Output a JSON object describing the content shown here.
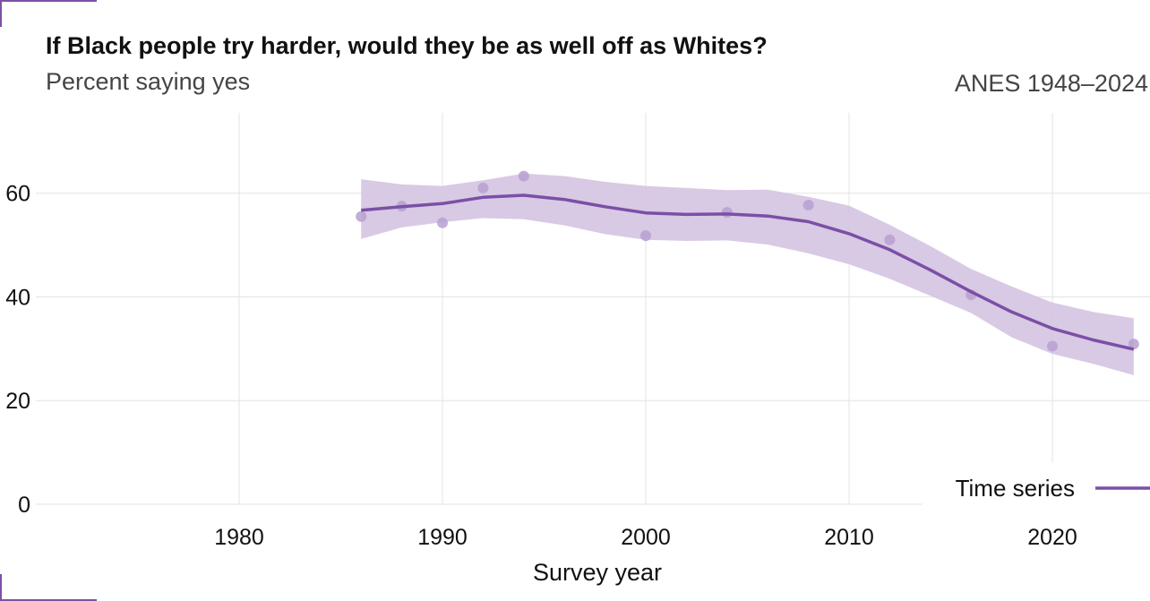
{
  "header": {
    "title": "If Black people try harder, would they be as well off as Whites?",
    "subtitle": "Percent saying yes",
    "source": "ANES 1948–2024"
  },
  "colors": {
    "line": "#7b4fa6",
    "band": "#d6c6e3",
    "points": "#b9a0d1",
    "grid": "#e3e3e3",
    "corner": "#7b52a6"
  },
  "chart_data": {
    "type": "line",
    "title": "If Black people try harder, would they be as well off as Whites?",
    "subtitle": "Percent saying yes",
    "xlabel": "Survey year",
    "ylabel": "",
    "xlim": [
      1971,
      2025
    ],
    "ylim": [
      0,
      72
    ],
    "xticks": [
      1980,
      1990,
      2000,
      2010,
      2020
    ],
    "yticks": [
      0,
      20,
      40,
      60
    ],
    "grid": true,
    "legend": {
      "placement": "bottom-right",
      "entries": [
        "Time series"
      ]
    },
    "points": {
      "x": [
        1986,
        1988,
        1990,
        1992,
        1994,
        2000,
        2004,
        2008,
        2012,
        2016,
        2020,
        2024
      ],
      "y": [
        55.5,
        57.5,
        54.3,
        61.0,
        63.3,
        51.8,
        56.3,
        57.7,
        51.0,
        40.4,
        30.5,
        30.9
      ]
    },
    "series": [
      {
        "name": "Time series",
        "x": [
          1986,
          1988,
          1990,
          1992,
          1994,
          1996,
          1998,
          2000,
          2002,
          2004,
          2006,
          2008,
          2010,
          2012,
          2014,
          2016,
          2018,
          2020,
          2022,
          2024
        ],
        "y": [
          56.7,
          57.4,
          58.0,
          59.2,
          59.6,
          58.8,
          57.4,
          56.2,
          55.9,
          56.0,
          55.6,
          54.5,
          52.2,
          49.1,
          45.2,
          41.0,
          37.1,
          33.9,
          31.7,
          29.9
        ],
        "lower": [
          51.2,
          53.4,
          54.4,
          55.2,
          55.0,
          53.8,
          52.1,
          51.0,
          50.8,
          50.9,
          50.1,
          48.4,
          46.3,
          43.5,
          40.2,
          36.9,
          32.2,
          29.0,
          27.1,
          24.9
        ],
        "upper": [
          62.7,
          61.7,
          61.4,
          62.5,
          63.8,
          63.3,
          62.2,
          61.4,
          61.0,
          60.6,
          60.7,
          59.3,
          57.6,
          53.9,
          49.8,
          45.4,
          42.0,
          38.9,
          37.1,
          35.9
        ]
      }
    ]
  }
}
